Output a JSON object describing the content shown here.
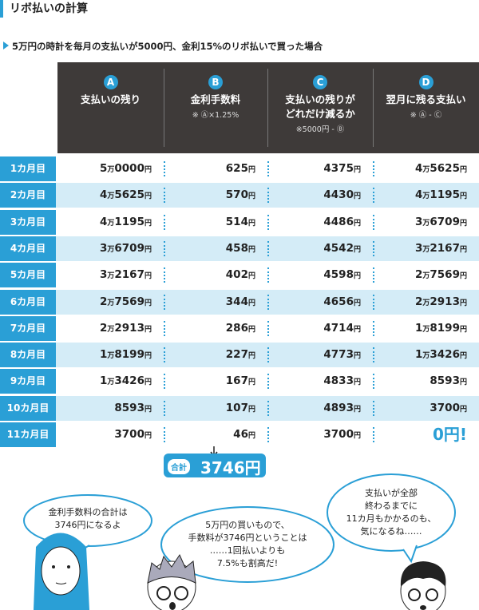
{
  "header": {
    "title": "リボ払いの計算"
  },
  "subtitle": "5万円の時計を毎月の支払いが5000円、金利15%のリボ払いで買った場合",
  "table": {
    "columns": [
      {
        "letter": "A",
        "title": "支払いの残り",
        "note": null
      },
      {
        "letter": "B",
        "title": "金利手数料",
        "note": "※ Ⓐ×1.25%"
      },
      {
        "letter": "C",
        "title": "支払いの残りが\nどれだけ減るか",
        "note": "※5000円 - Ⓑ"
      },
      {
        "letter": "D",
        "title": "翌月に残る支払い",
        "note": "※ Ⓐ - Ⓒ"
      }
    ],
    "rows": [
      [
        "1カ月目",
        "5万0000円",
        "625円",
        "4375円",
        "4万5625円"
      ],
      [
        "2カ月目",
        "4万5625円",
        "570円",
        "4430円",
        "4万1195円"
      ],
      [
        "3カ月目",
        "4万1195円",
        "514円",
        "4486円",
        "3万6709円"
      ],
      [
        "4カ月目",
        "3万6709円",
        "458円",
        "4542円",
        "3万2167円"
      ],
      [
        "5カ月目",
        "3万2167円",
        "402円",
        "4598円",
        "2万7569円"
      ],
      [
        "6カ月目",
        "2万7569円",
        "344円",
        "4656円",
        "2万2913円"
      ],
      [
        "7カ月目",
        "2万2913円",
        "286円",
        "4714円",
        "1万8199円"
      ],
      [
        "8カ月目",
        "1万8199円",
        "227円",
        "4773円",
        "1万3426円"
      ],
      [
        "9カ月目",
        "1万3426円",
        "167円",
        "4833円",
        "8593円"
      ],
      [
        "10カ月目",
        "8593円",
        "107円",
        "4893円",
        "3700円"
      ],
      [
        "11カ月目",
        "3700円",
        "46円",
        "3700円",
        "0円!"
      ]
    ]
  },
  "total": {
    "label": "合計",
    "value": "3746円"
  },
  "bubbles": [
    "金利手数料の合計は\n3746円になるよ",
    "5万円の買いもので、\n手数料が3746円ということは\n……1回払いよりも\n7.5%も割高だ!",
    "支払いが全部\n終わるまでに\n11カ月もかかるのも、\n気になるね……"
  ]
}
